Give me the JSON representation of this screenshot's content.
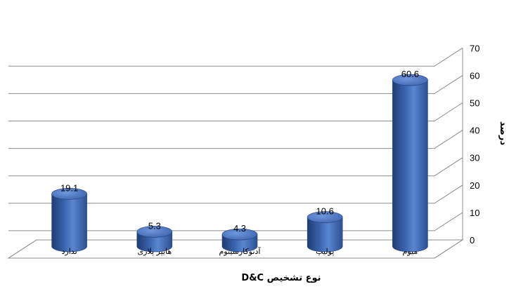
{
  "chart_data": {
    "type": "bar",
    "categories": [
      "ندارد",
      "هایپر پلازی",
      "آدنوکارسینوم",
      "پولیپ",
      "میوم"
    ],
    "values": [
      19.1,
      5.3,
      4.3,
      10.6,
      60.6
    ],
    "data_labels": [
      "19.1",
      "5.3",
      "4.3",
      "10.6",
      "60.6"
    ],
    "title": "",
    "xlabel": "نوع تشخیص D&C",
    "ylabel": "درصد",
    "ylim": [
      0,
      70
    ],
    "yticks": [
      "0",
      "10",
      "20",
      "30",
      "40",
      "50",
      "60",
      "70"
    ],
    "y_axis_side": "right",
    "grid": true,
    "bar_style": "3d-cylinder",
    "bar_color": "#4472C4"
  }
}
